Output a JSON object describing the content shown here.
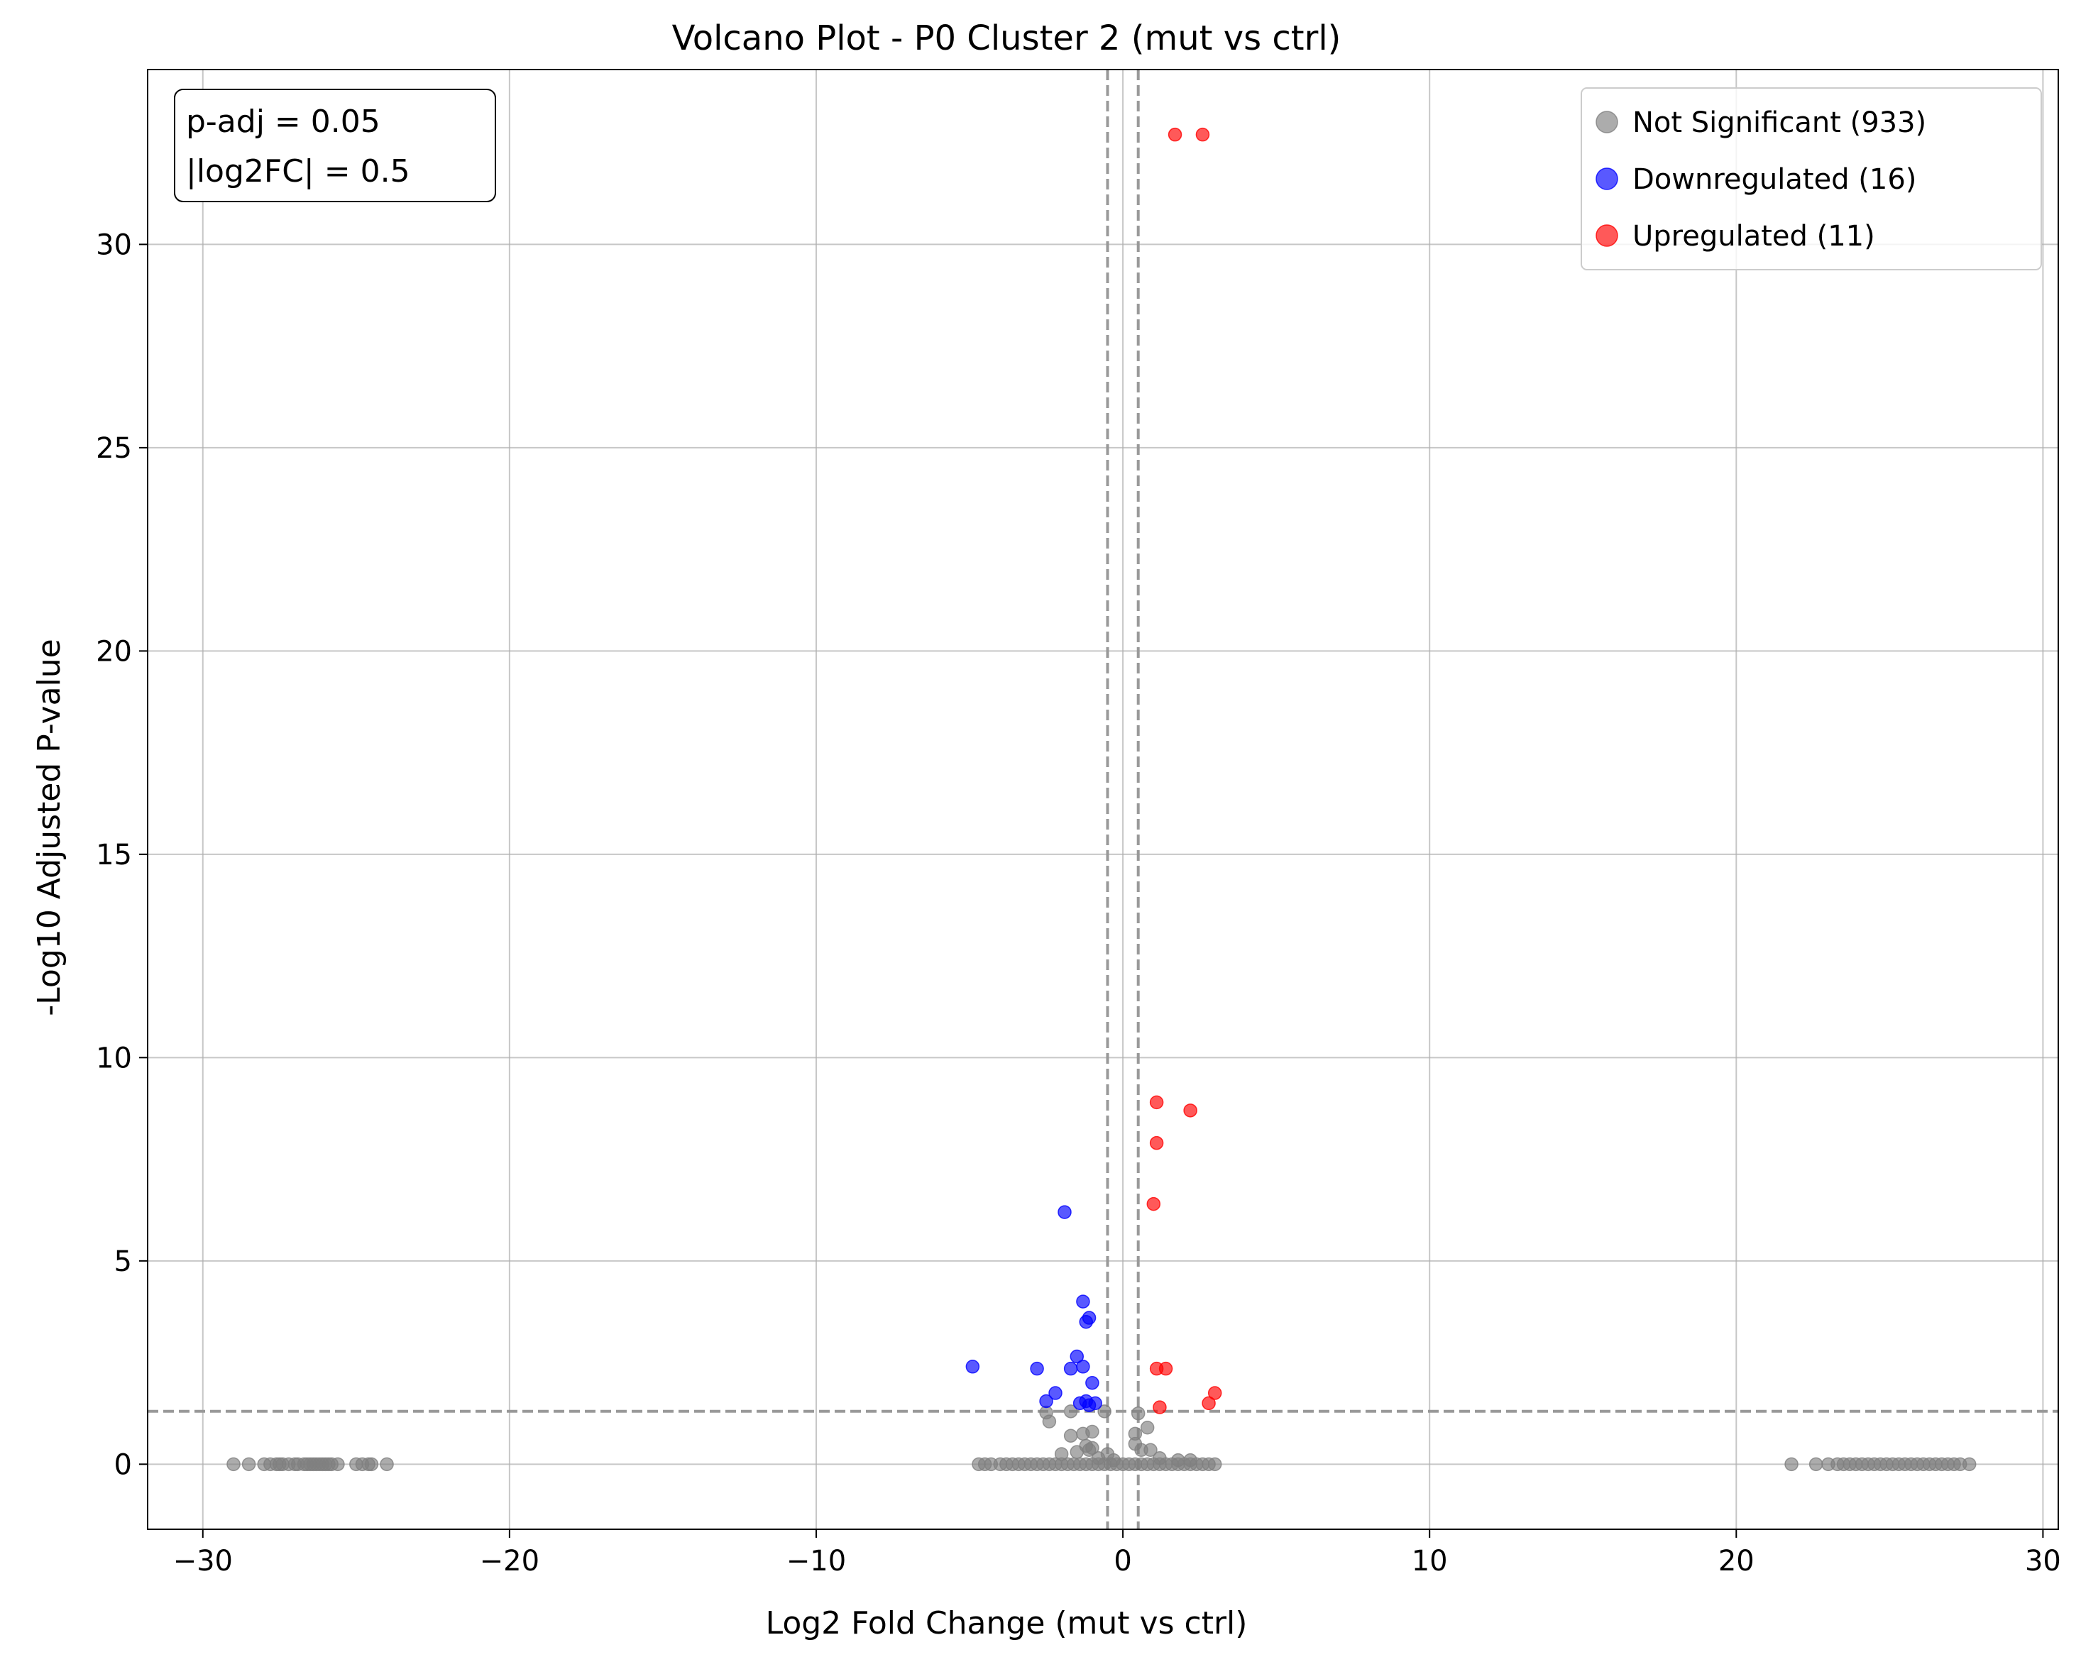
{
  "chart_data": {
    "type": "scatter",
    "title": "Volcano Plot - P0 Cluster 2 (mut vs ctrl)",
    "xlabel": "Log2 Fold Change (mut vs ctrl)",
    "ylabel": "-Log10 Adjusted P-value",
    "xlim": [
      -31.8,
      30.5
    ],
    "ylim": [
      -1.6,
      34.3
    ],
    "xticks": [
      -30,
      -20,
      -10,
      0,
      10,
      20,
      30
    ],
    "xtick_labels": [
      "−30",
      "−20",
      "−10",
      "0",
      "10",
      "20",
      "30"
    ],
    "yticks": [
      0,
      5,
      10,
      15,
      20,
      25,
      30
    ],
    "ytick_labels": [
      "0",
      "5",
      "10",
      "15",
      "20",
      "25",
      "30"
    ],
    "grid": true,
    "legend_position": "top-right",
    "thresholds": {
      "padj_line_y": 1.301,
      "log2fc_lines_x": [
        -0.5,
        0.5
      ]
    },
    "threshold_box": {
      "line1": "p-adj = 0.05",
      "line2": "|log2FC| = 0.5"
    },
    "legend": [
      {
        "label": "Not Significant (933)",
        "color": "#808080"
      },
      {
        "label": "Downregulated (16)",
        "color": "#0000ff"
      },
      {
        "label": "Upregulated (11)",
        "color": "#ff0000"
      }
    ],
    "series": [
      {
        "name": "Not Significant (933)",
        "color": "#808080",
        "points": [
          [
            -29.0,
            0
          ],
          [
            -28.5,
            0
          ],
          [
            -28.0,
            0
          ],
          [
            -27.8,
            0
          ],
          [
            -27.6,
            0
          ],
          [
            -27.5,
            0
          ],
          [
            -27.4,
            0
          ],
          [
            -27.2,
            0
          ],
          [
            -27.0,
            0
          ],
          [
            -26.9,
            0
          ],
          [
            -26.7,
            0
          ],
          [
            -26.6,
            0
          ],
          [
            -26.5,
            0
          ],
          [
            -26.4,
            0
          ],
          [
            -26.3,
            0
          ],
          [
            -26.2,
            0
          ],
          [
            -26.1,
            0
          ],
          [
            -26.0,
            0
          ],
          [
            -25.9,
            0
          ],
          [
            -25.8,
            0
          ],
          [
            -25.6,
            0
          ],
          [
            -25.0,
            0
          ],
          [
            -24.8,
            0
          ],
          [
            -24.6,
            0
          ],
          [
            -24.5,
            0
          ],
          [
            -24.0,
            0
          ],
          [
            -4.7,
            0
          ],
          [
            -4.5,
            0
          ],
          [
            -4.3,
            0
          ],
          [
            -4.0,
            0
          ],
          [
            -3.8,
            0
          ],
          [
            -3.6,
            0
          ],
          [
            -3.4,
            0
          ],
          [
            -3.2,
            0
          ],
          [
            -3.0,
            0
          ],
          [
            -2.8,
            0
          ],
          [
            -2.6,
            0
          ],
          [
            -2.4,
            0
          ],
          [
            -2.2,
            0
          ],
          [
            -2.0,
            0
          ],
          [
            -1.8,
            0
          ],
          [
            -1.6,
            0
          ],
          [
            -1.4,
            0
          ],
          [
            -1.2,
            0
          ],
          [
            -1.0,
            0
          ],
          [
            -0.8,
            0
          ],
          [
            -0.6,
            0
          ],
          [
            -0.4,
            0
          ],
          [
            -0.2,
            0
          ],
          [
            0.0,
            0
          ],
          [
            0.2,
            0
          ],
          [
            0.4,
            0
          ],
          [
            0.6,
            0
          ],
          [
            0.8,
            0
          ],
          [
            1.0,
            0
          ],
          [
            1.2,
            0
          ],
          [
            1.4,
            0
          ],
          [
            1.6,
            0
          ],
          [
            1.8,
            0
          ],
          [
            2.0,
            0
          ],
          [
            2.2,
            0
          ],
          [
            2.4,
            0
          ],
          [
            2.6,
            0
          ],
          [
            2.8,
            0
          ],
          [
            3.0,
            0
          ],
          [
            -2.5,
            1.27
          ],
          [
            -2.4,
            1.05
          ],
          [
            -1.7,
            1.3
          ],
          [
            -1.7,
            0.7
          ],
          [
            -1.3,
            0.75
          ],
          [
            -1.2,
            0.45
          ],
          [
            -1.1,
            0.35
          ],
          [
            -1.0,
            0.8
          ],
          [
            -1.0,
            0.4
          ],
          [
            -0.6,
            1.3
          ],
          [
            -0.5,
            0.25
          ],
          [
            -2.0,
            0.25
          ],
          [
            -1.5,
            0.3
          ],
          [
            -0.8,
            0.15
          ],
          [
            0.4,
            0.75
          ],
          [
            0.5,
            1.25
          ],
          [
            0.6,
            0.35
          ],
          [
            0.8,
            0.9
          ],
          [
            0.9,
            0.35
          ],
          [
            0.4,
            0.5
          ],
          [
            1.2,
            0.15
          ],
          [
            2.2,
            0.1
          ],
          [
            1.8,
            0.1
          ],
          [
            -0.3,
            0.1
          ],
          [
            21.8,
            0
          ],
          [
            22.6,
            0
          ],
          [
            23.0,
            0
          ],
          [
            23.3,
            0
          ],
          [
            23.5,
            0
          ],
          [
            23.7,
            0
          ],
          [
            23.9,
            0
          ],
          [
            24.1,
            0
          ],
          [
            24.3,
            0
          ],
          [
            24.5,
            0
          ],
          [
            24.7,
            0
          ],
          [
            24.9,
            0
          ],
          [
            25.1,
            0
          ],
          [
            25.3,
            0
          ],
          [
            25.5,
            0
          ],
          [
            25.7,
            0
          ],
          [
            25.9,
            0
          ],
          [
            26.1,
            0
          ],
          [
            26.3,
            0
          ],
          [
            26.5,
            0
          ],
          [
            26.7,
            0
          ],
          [
            26.9,
            0
          ],
          [
            27.1,
            0
          ],
          [
            27.3,
            0
          ],
          [
            27.6,
            0
          ]
        ]
      },
      {
        "name": "Downregulated (16)",
        "color": "#0000ff",
        "points": [
          [
            -1.9,
            6.2
          ],
          [
            -1.3,
            4.0
          ],
          [
            -1.2,
            3.5
          ],
          [
            -1.1,
            3.6
          ],
          [
            -1.5,
            2.65
          ],
          [
            -1.3,
            2.4
          ],
          [
            -1.7,
            2.35
          ],
          [
            -2.8,
            2.35
          ],
          [
            -4.9,
            2.4
          ],
          [
            -1.0,
            2.0
          ],
          [
            -2.2,
            1.75
          ],
          [
            -2.5,
            1.55
          ],
          [
            -1.4,
            1.5
          ],
          [
            -1.1,
            1.45
          ],
          [
            -0.9,
            1.5
          ],
          [
            -1.2,
            1.55
          ]
        ]
      },
      {
        "name": "Upregulated (11)",
        "color": "#ff0000",
        "points": [
          [
            1.7,
            32.7
          ],
          [
            2.6,
            32.7
          ],
          [
            1.1,
            8.9
          ],
          [
            2.2,
            8.7
          ],
          [
            1.1,
            7.9
          ],
          [
            1.0,
            6.4
          ],
          [
            1.1,
            2.35
          ],
          [
            1.4,
            2.35
          ],
          [
            3.0,
            1.75
          ],
          [
            2.8,
            1.5
          ],
          [
            1.2,
            1.4
          ]
        ]
      }
    ]
  }
}
